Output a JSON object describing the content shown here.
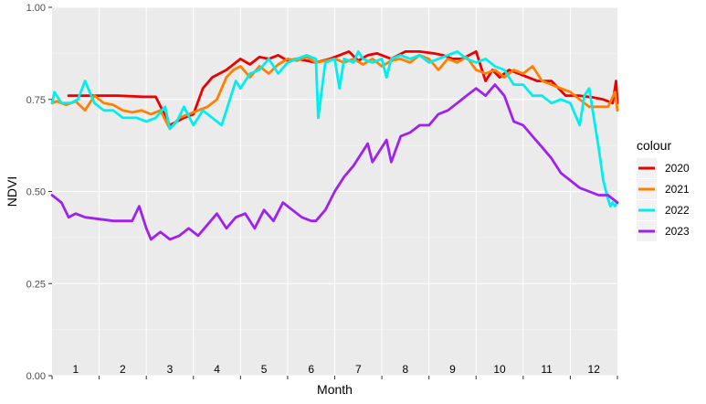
{
  "chart_data": {
    "type": "line",
    "title": "",
    "xlabel": "Month",
    "ylabel": "NDVI",
    "ylim": [
      0,
      1
    ],
    "yticks": [
      "0.00",
      "0.25",
      "0.50",
      "0.75",
      "1.00"
    ],
    "xlim": [
      0,
      12
    ],
    "month_labels": [
      "1",
      "2",
      "3",
      "4",
      "5",
      "6",
      "7",
      "8",
      "9",
      "10",
      "11",
      "12"
    ],
    "grid": true,
    "legend": {
      "title": "colour",
      "position": "right"
    },
    "series": [
      {
        "name": "2020",
        "color": "#ee0000",
        "x": [
          0.35,
          1.0,
          1.4,
          1.95,
          2.2,
          2.5,
          2.8,
          3.0,
          3.2,
          3.4,
          3.7,
          4.0,
          4.2,
          4.4,
          4.6,
          4.8,
          5.0,
          5.2,
          5.4,
          5.6,
          5.9,
          6.1,
          6.3,
          6.5,
          6.7,
          6.9,
          7.2,
          7.5,
          7.8,
          8.1,
          8.3,
          8.5,
          8.7,
          9.0,
          9.2,
          9.35,
          9.5,
          9.7,
          9.9,
          10.1,
          10.3,
          10.6,
          10.9,
          11.2,
          11.5,
          11.7,
          11.9,
          11.97,
          12.0
        ],
        "y": [
          0.76,
          0.76,
          0.76,
          0.757,
          0.757,
          0.68,
          0.7,
          0.71,
          0.78,
          0.81,
          0.83,
          0.86,
          0.845,
          0.865,
          0.86,
          0.87,
          0.855,
          0.86,
          0.855,
          0.85,
          0.86,
          0.87,
          0.88,
          0.855,
          0.87,
          0.875,
          0.86,
          0.88,
          0.88,
          0.875,
          0.87,
          0.86,
          0.86,
          0.88,
          0.8,
          0.83,
          0.81,
          0.83,
          0.82,
          0.81,
          0.8,
          0.8,
          0.76,
          0.76,
          0.755,
          0.75,
          0.74,
          0.8,
          0.74
        ]
      },
      {
        "name": "2021",
        "color": "#ff8000",
        "x": [
          0.0,
          0.1,
          0.3,
          0.5,
          0.7,
          0.9,
          1.1,
          1.3,
          1.5,
          1.7,
          1.9,
          2.1,
          2.3,
          2.5,
          2.7,
          2.9,
          3.1,
          3.3,
          3.5,
          3.7,
          3.85,
          4.0,
          4.2,
          4.4,
          4.6,
          4.8,
          5.0,
          5.2,
          5.4,
          5.6,
          5.8,
          6.0,
          6.2,
          6.4,
          6.6,
          6.8,
          7.0,
          7.2,
          7.4,
          7.6,
          7.8,
          8.0,
          8.2,
          8.4,
          8.6,
          8.8,
          9.0,
          9.2,
          9.4,
          9.6,
          9.8,
          10.0,
          10.2,
          10.4,
          10.6,
          10.8,
          11.0,
          11.2,
          11.4,
          11.6,
          11.8,
          11.95,
          12.0
        ],
        "y": [
          0.74,
          0.745,
          0.735,
          0.745,
          0.72,
          0.76,
          0.74,
          0.735,
          0.72,
          0.715,
          0.72,
          0.71,
          0.72,
          0.67,
          0.7,
          0.71,
          0.72,
          0.73,
          0.75,
          0.81,
          0.83,
          0.84,
          0.81,
          0.84,
          0.82,
          0.845,
          0.86,
          0.855,
          0.865,
          0.85,
          0.855,
          0.86,
          0.85,
          0.86,
          0.845,
          0.86,
          0.84,
          0.855,
          0.86,
          0.85,
          0.87,
          0.86,
          0.83,
          0.86,
          0.85,
          0.865,
          0.83,
          0.82,
          0.83,
          0.81,
          0.83,
          0.82,
          0.84,
          0.8,
          0.79,
          0.78,
          0.77,
          0.75,
          0.73,
          0.73,
          0.73,
          0.77,
          0.72
        ]
      },
      {
        "name": "2022",
        "color": "#00eeee",
        "x": [
          0.0,
          0.05,
          0.2,
          0.4,
          0.55,
          0.7,
          0.9,
          1.1,
          1.3,
          1.5,
          1.8,
          2.0,
          2.2,
          2.4,
          2.5,
          2.65,
          2.8,
          3.0,
          3.2,
          3.4,
          3.6,
          3.8,
          3.9,
          4.0,
          4.2,
          4.4,
          4.6,
          4.8,
          5.0,
          5.2,
          5.4,
          5.6,
          5.65,
          5.8,
          6.0,
          6.1,
          6.2,
          6.4,
          6.5,
          6.6,
          6.8,
          7.0,
          7.1,
          7.2,
          7.4,
          7.6,
          7.8,
          8.0,
          8.2,
          8.4,
          8.6,
          8.8,
          9.0,
          9.2,
          9.4,
          9.6,
          9.8,
          10.0,
          10.2,
          10.4,
          10.6,
          10.8,
          11.0,
          11.2,
          11.3,
          11.4,
          11.5,
          11.6,
          11.7,
          11.8,
          11.85,
          11.9,
          11.95,
          12.0
        ],
        "y": [
          0.74,
          0.77,
          0.74,
          0.74,
          0.75,
          0.8,
          0.74,
          0.72,
          0.72,
          0.7,
          0.7,
          0.69,
          0.7,
          0.73,
          0.67,
          0.69,
          0.73,
          0.68,
          0.72,
          0.7,
          0.68,
          0.76,
          0.8,
          0.78,
          0.82,
          0.83,
          0.86,
          0.82,
          0.85,
          0.86,
          0.87,
          0.86,
          0.7,
          0.85,
          0.86,
          0.78,
          0.86,
          0.85,
          0.88,
          0.86,
          0.85,
          0.86,
          0.81,
          0.86,
          0.87,
          0.86,
          0.87,
          0.85,
          0.86,
          0.87,
          0.88,
          0.86,
          0.85,
          0.86,
          0.84,
          0.83,
          0.79,
          0.79,
          0.76,
          0.76,
          0.74,
          0.75,
          0.74,
          0.68,
          0.76,
          0.78,
          0.7,
          0.62,
          0.53,
          0.48,
          0.46,
          0.47,
          0.46,
          0.47
        ]
      },
      {
        "name": "2023",
        "color": "#a020f0",
        "x": [
          0.0,
          0.2,
          0.35,
          0.5,
          0.7,
          1.0,
          1.3,
          1.7,
          1.85,
          2.0,
          2.1,
          2.3,
          2.5,
          2.7,
          2.9,
          3.1,
          3.3,
          3.5,
          3.7,
          3.9,
          4.1,
          4.3,
          4.5,
          4.7,
          4.9,
          5.1,
          5.3,
          5.5,
          5.6,
          5.8,
          6.0,
          6.2,
          6.4,
          6.6,
          6.7,
          6.8,
          6.9,
          7.0,
          7.1,
          7.2,
          7.4,
          7.6,
          7.8,
          8.0,
          8.2,
          8.4,
          8.6,
          8.8,
          9.0,
          9.2,
          9.4,
          9.6,
          9.8,
          10.0,
          10.2,
          10.4,
          10.6,
          10.8,
          11.0,
          11.2,
          11.4,
          11.6,
          11.8,
          12.0
        ],
        "y": [
          0.49,
          0.47,
          0.43,
          0.44,
          0.43,
          0.425,
          0.42,
          0.42,
          0.46,
          0.4,
          0.37,
          0.39,
          0.37,
          0.38,
          0.4,
          0.38,
          0.41,
          0.44,
          0.4,
          0.43,
          0.44,
          0.4,
          0.45,
          0.42,
          0.47,
          0.45,
          0.43,
          0.42,
          0.42,
          0.45,
          0.5,
          0.54,
          0.57,
          0.61,
          0.63,
          0.58,
          0.6,
          0.62,
          0.64,
          0.58,
          0.65,
          0.66,
          0.68,
          0.68,
          0.71,
          0.72,
          0.74,
          0.76,
          0.78,
          0.76,
          0.79,
          0.76,
          0.69,
          0.68,
          0.65,
          0.62,
          0.59,
          0.55,
          0.53,
          0.51,
          0.5,
          0.49,
          0.49,
          0.47
        ]
      }
    ]
  }
}
